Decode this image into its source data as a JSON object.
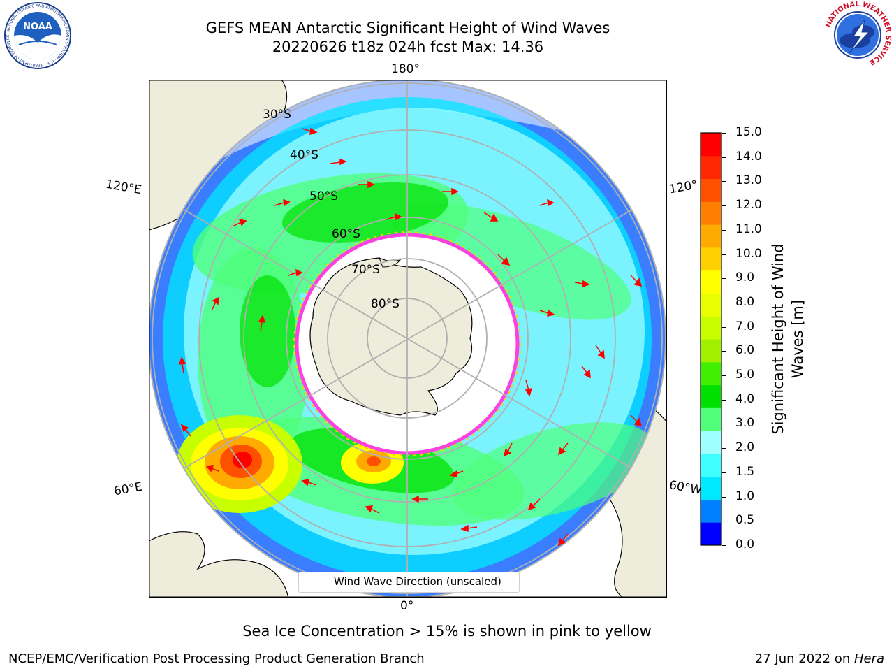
{
  "header": {
    "title_line1": "GEFS MEAN Antarctic Significant Height of Wind Waves",
    "title_line2": "20220626 t18z 024h fcst   Max: 14.36"
  },
  "logos": {
    "left": {
      "icon": "noaa-logo",
      "text": "NOAA",
      "ring_text": "NATIONAL OCEANIC AND ATMOSPHERIC ADMINISTRATION · U.S. DEPARTMENT OF COMMERCE"
    },
    "right": {
      "icon": "nws-logo",
      "ring_text": "NATIONAL WEATHER SERVICE"
    }
  },
  "map": {
    "projection": "south polar stereographic",
    "longitude_labels": {
      "top": "180°",
      "bottom": "0°",
      "left_upper": "120°E",
      "left_lower": "60°E",
      "right_upper": "120°",
      "right_lower": "60°W"
    },
    "latitude_labels": [
      "30°S",
      "40°S",
      "50°S",
      "60°S",
      "70°S",
      "80°S"
    ],
    "colors": {
      "land": "#eeecdb",
      "ocean_missing": "#ffffff",
      "arrows": "#ff0000",
      "grid": "#b0b0b0",
      "ice_edge": "#ff40e0"
    },
    "legend": {
      "label": "Wind Wave Direction (unscaled)"
    }
  },
  "colorbar": {
    "label_line1": "Significant Height of Wind",
    "label_line2": "Waves [m]",
    "ticks": [
      "15.0",
      "14.0",
      "13.0",
      "12.0",
      "11.0",
      "10.0",
      "9.0",
      "8.0",
      "7.0",
      "6.0",
      "5.0",
      "4.0",
      "3.0",
      "2.0",
      "1.5",
      "1.0",
      "0.5",
      "0.0"
    ],
    "colors_bottom_to_top": [
      "#0000ff",
      "#0080ff",
      "#00e8ff",
      "#40ffff",
      "#a0ffff",
      "#50ff7a",
      "#00e000",
      "#40f000",
      "#a0f000",
      "#c8ff00",
      "#e8ff00",
      "#ffff00",
      "#ffd000",
      "#ffaa00",
      "#ff8000",
      "#ff5000",
      "#ff2800",
      "#ff0000"
    ]
  },
  "chart_data": {
    "type": "heatmap",
    "title": "GEFS MEAN Antarctic Significant Height of Wind Waves",
    "subtitle": "20220626 t18z 024h fcst   Max: 14.36",
    "colorbar_label": "Significant Height of Wind Waves [m]",
    "colorbar_levels": [
      0.0,
      0.5,
      1.0,
      1.5,
      2.0,
      3.0,
      4.0,
      5.0,
      6.0,
      7.0,
      8.0,
      9.0,
      10.0,
      11.0,
      12.0,
      13.0,
      14.0,
      15.0
    ],
    "max_value": 14.36,
    "units": "m"
  },
  "footer": {
    "note": "Sea Ice Concentration > 15% is shown in pink to yellow",
    "credit": "NCEP/EMC/Verification Post Processing Product Generation Branch",
    "date": "27 Jun 2022 on ",
    "machine": "Hera"
  }
}
